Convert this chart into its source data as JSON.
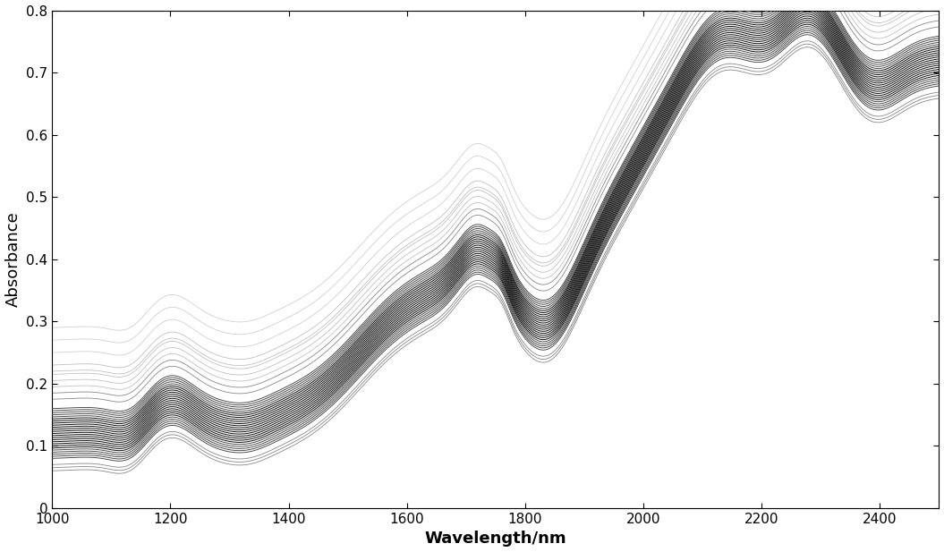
{
  "title": "",
  "xlabel": "Wavelength/nm",
  "ylabel": "Absorbance",
  "xlim": [
    1000,
    2500
  ],
  "ylim": [
    0,
    0.8
  ],
  "xticks": [
    1000,
    1200,
    1400,
    1600,
    1800,
    2000,
    2200,
    2400
  ],
  "yticks": [
    0,
    0.1,
    0.2,
    0.3,
    0.4,
    0.5,
    0.6,
    0.7,
    0.8
  ],
  "n_spectra": 35,
  "background_color": "#ffffff",
  "xlabel_fontsize": 13,
  "ylabel_fontsize": 13,
  "tick_fontsize": 11
}
